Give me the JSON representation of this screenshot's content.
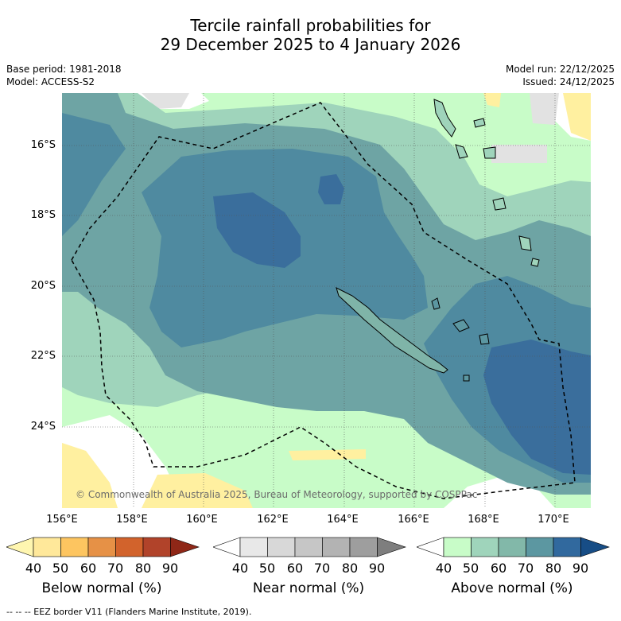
{
  "header": {
    "title_line1": "Tercile rainfall probabilities for",
    "title_line2": "29 December 2025 to 4 January 2026",
    "base_period": "Base period: 1981-2018",
    "model": "Model: ACCESS-S2",
    "model_run": "Model run: 22/12/2025",
    "issued": "Issued: 24/12/2025"
  },
  "map": {
    "lat_labels": [
      "16°S",
      "18°S",
      "20°S",
      "22°S",
      "24°S"
    ],
    "lon_labels": [
      "156°E",
      "158°E",
      "160°E",
      "162°E",
      "164°E",
      "166°E",
      "168°E",
      "170°E"
    ],
    "copyright": "© Commonwealth of Australia 2025, Bureau of Meteorology, supported by COSPPac"
  },
  "colorbars": [
    {
      "label": "Below normal (%)",
      "ticks": [
        "40",
        "50",
        "60",
        "70",
        "80",
        "90"
      ],
      "colors": [
        "#fff6b0",
        "#ffe89a",
        "#fdc560",
        "#e69146",
        "#d2632c",
        "#b1432a",
        "#8f2717"
      ]
    },
    {
      "label": "Near normal (%)",
      "ticks": [
        "40",
        "50",
        "60",
        "70",
        "80",
        "90"
      ],
      "colors": [
        "#ffffff",
        "#e8e8e8",
        "#d8d8d8",
        "#c6c6c6",
        "#b3b3b3",
        "#9e9e9e",
        "#7e7e7e"
      ]
    },
    {
      "label": "Above normal (%)",
      "ticks": [
        "40",
        "50",
        "60",
        "70",
        "80",
        "90"
      ],
      "colors": [
        "#ffffff",
        "#c8fcc8",
        "#9fd4bb",
        "#82b8a9",
        "#5c97a1",
        "#31699e",
        "#174d86"
      ]
    }
  ],
  "footer": "--  --  -- EEZ border V11 (Flanders Marine Institute, 2019).",
  "colors": {
    "above_40": "#c8fcc8",
    "above_50": "#9fd4bb",
    "above_60": "#6ea4a4",
    "above_70": "#4f8aa0",
    "above_80": "#3a6e9c",
    "below_40": "#fff0a0",
    "near_40": "#e2e2e2"
  }
}
